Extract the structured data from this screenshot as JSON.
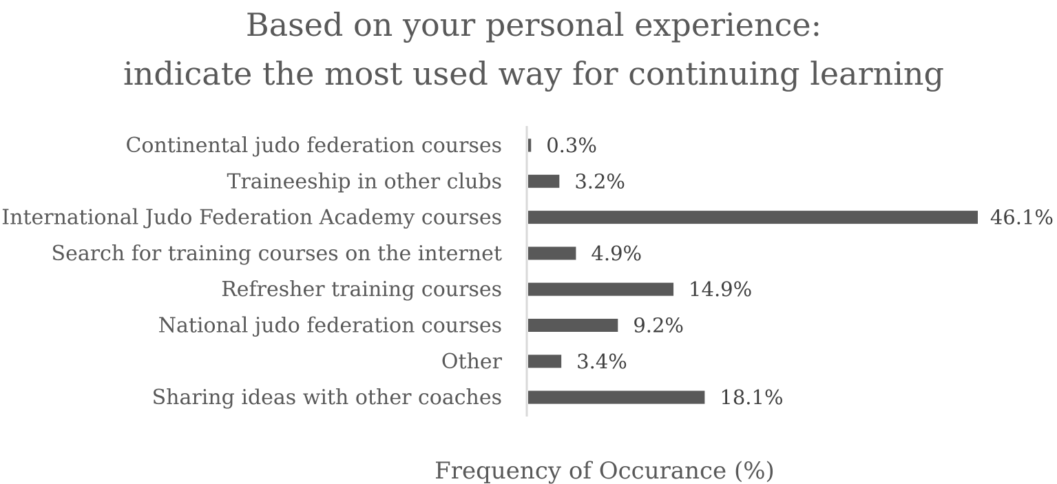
{
  "chart_data": {
    "type": "bar",
    "orientation": "horizontal",
    "title": [
      "Based on your personal experience:",
      "indicate the most used way for continuing learning"
    ],
    "xlabel": "Frequency of Occurance (%)",
    "ylabel": "",
    "categories": [
      "Continental judo federation courses",
      "Traineeship in other clubs",
      "International Judo Federation Academy courses",
      "Search for training courses on the internet",
      "Refresher training courses",
      "National judo federation courses",
      "Other",
      "Sharing ideas with other coaches"
    ],
    "values": [
      0.3,
      3.2,
      46.1,
      4.9,
      14.9,
      9.2,
      3.4,
      18.1
    ],
    "value_labels": [
      "0.3%",
      "3.2%",
      "46.1%",
      "4.9%",
      "14.9%",
      "9.2%",
      "3.4%",
      "18.1%"
    ],
    "xlim": [
      0,
      46.1
    ],
    "grid": false,
    "legend": "none",
    "colors": {
      "bar": "#595959",
      "axis": "#d9d9d9",
      "text": "#595959"
    }
  }
}
